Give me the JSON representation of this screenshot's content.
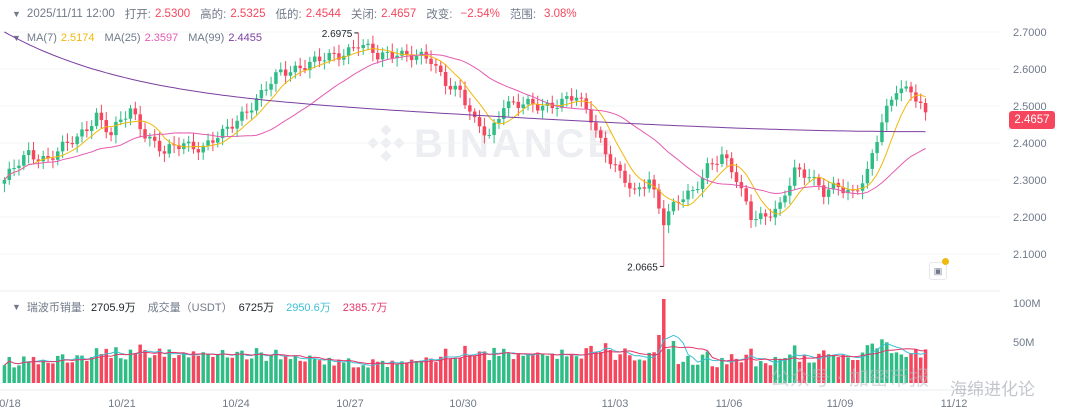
{
  "header": {
    "date": "2025/11/11 12:00",
    "open_label": "打开:",
    "open": "2.5300",
    "high_label": "高的:",
    "high": "2.5325",
    "low_label": "低的:",
    "low": "2.4544",
    "close_label": "关闭:",
    "close": "2.4657",
    "change_label": "改变:",
    "change": "−2.54%",
    "range_label": "范围:",
    "range": "3.08%"
  },
  "ma": {
    "ma7_label": "MA(7)",
    "ma7": "2.5174",
    "ma25_label": "MA(25)",
    "ma25": "2.3597",
    "ma99_label": "MA(99)",
    "ma99": "2.4455"
  },
  "volume": {
    "label": "瑞波币销量:",
    "value": "2705.9万",
    "turnover_label": "成交量（USDT）",
    "turnover": "6725万",
    "ma1": "2950.6万",
    "ma2": "2385.7万"
  },
  "price_tag": "2.4657",
  "watermark": {
    "brand": "BINANCE",
    "wechat": "公众号 · 加密币报",
    "user": "海绵进化论"
  },
  "colors": {
    "up": "#2ebd85",
    "down": "#f6465d",
    "ma7": "#f0b90b",
    "ma25": "#e45cb1",
    "ma99": "#7b3fa0"
  },
  "chart_data": {
    "type": "candlestick",
    "interval": "4h",
    "x_ticks": [
      "0/18",
      "10/21",
      "10/24",
      "10/27",
      "10/30",
      "11/03",
      "11/06",
      "11/09",
      "11/12"
    ],
    "y_ticks": [
      "2.7000",
      "2.6000",
      "2.5000",
      "2.4000",
      "2.3000",
      "2.2000",
      "2.1000"
    ],
    "vol_ticks": [
      "100M",
      "50M"
    ],
    "annotations": {
      "high": "2.6975",
      "low": "2.0665"
    },
    "ylim": [
      2.0,
      2.75
    ],
    "anchors": [
      [
        0,
        2.3
      ],
      [
        5,
        2.37
      ],
      [
        9,
        2.36
      ],
      [
        15,
        2.41
      ],
      [
        19,
        2.48
      ],
      [
        22,
        2.42
      ],
      [
        26,
        2.49
      ],
      [
        29,
        2.43
      ],
      [
        33,
        2.37
      ],
      [
        37,
        2.4
      ],
      [
        41,
        2.39
      ],
      [
        45,
        2.42
      ],
      [
        49,
        2.48
      ],
      [
        53,
        2.53
      ],
      [
        57,
        2.59
      ],
      [
        61,
        2.61
      ],
      [
        65,
        2.62
      ],
      [
        69,
        2.64
      ],
      [
        73,
        2.67
      ],
      [
        77,
        2.63
      ],
      [
        81,
        2.65
      ],
      [
        85,
        2.63
      ],
      [
        88,
        2.62
      ],
      [
        91,
        2.57
      ],
      [
        94,
        2.54
      ],
      [
        97,
        2.45
      ],
      [
        100,
        2.42
      ],
      [
        103,
        2.51
      ],
      [
        106,
        2.5
      ],
      [
        110,
        2.5
      ],
      [
        114,
        2.51
      ],
      [
        118,
        2.52
      ],
      [
        121,
        2.47
      ],
      [
        124,
        2.38
      ],
      [
        127,
        2.31
      ],
      [
        130,
        2.26
      ],
      [
        133,
        2.31
      ],
      [
        136,
        2.19
      ],
      [
        139,
        2.24
      ],
      [
        142,
        2.27
      ],
      [
        145,
        2.34
      ],
      [
        148,
        2.36
      ],
      [
        151,
        2.3
      ],
      [
        154,
        2.21
      ],
      [
        157,
        2.2
      ],
      [
        160,
        2.22
      ],
      [
        163,
        2.33
      ],
      [
        166,
        2.32
      ],
      [
        169,
        2.26
      ],
      [
        172,
        2.28
      ],
      [
        175,
        2.27
      ],
      [
        178,
        2.32
      ],
      [
        181,
        2.45
      ],
      [
        184,
        2.55
      ],
      [
        187,
        2.55
      ],
      [
        190,
        2.47
      ]
    ]
  }
}
